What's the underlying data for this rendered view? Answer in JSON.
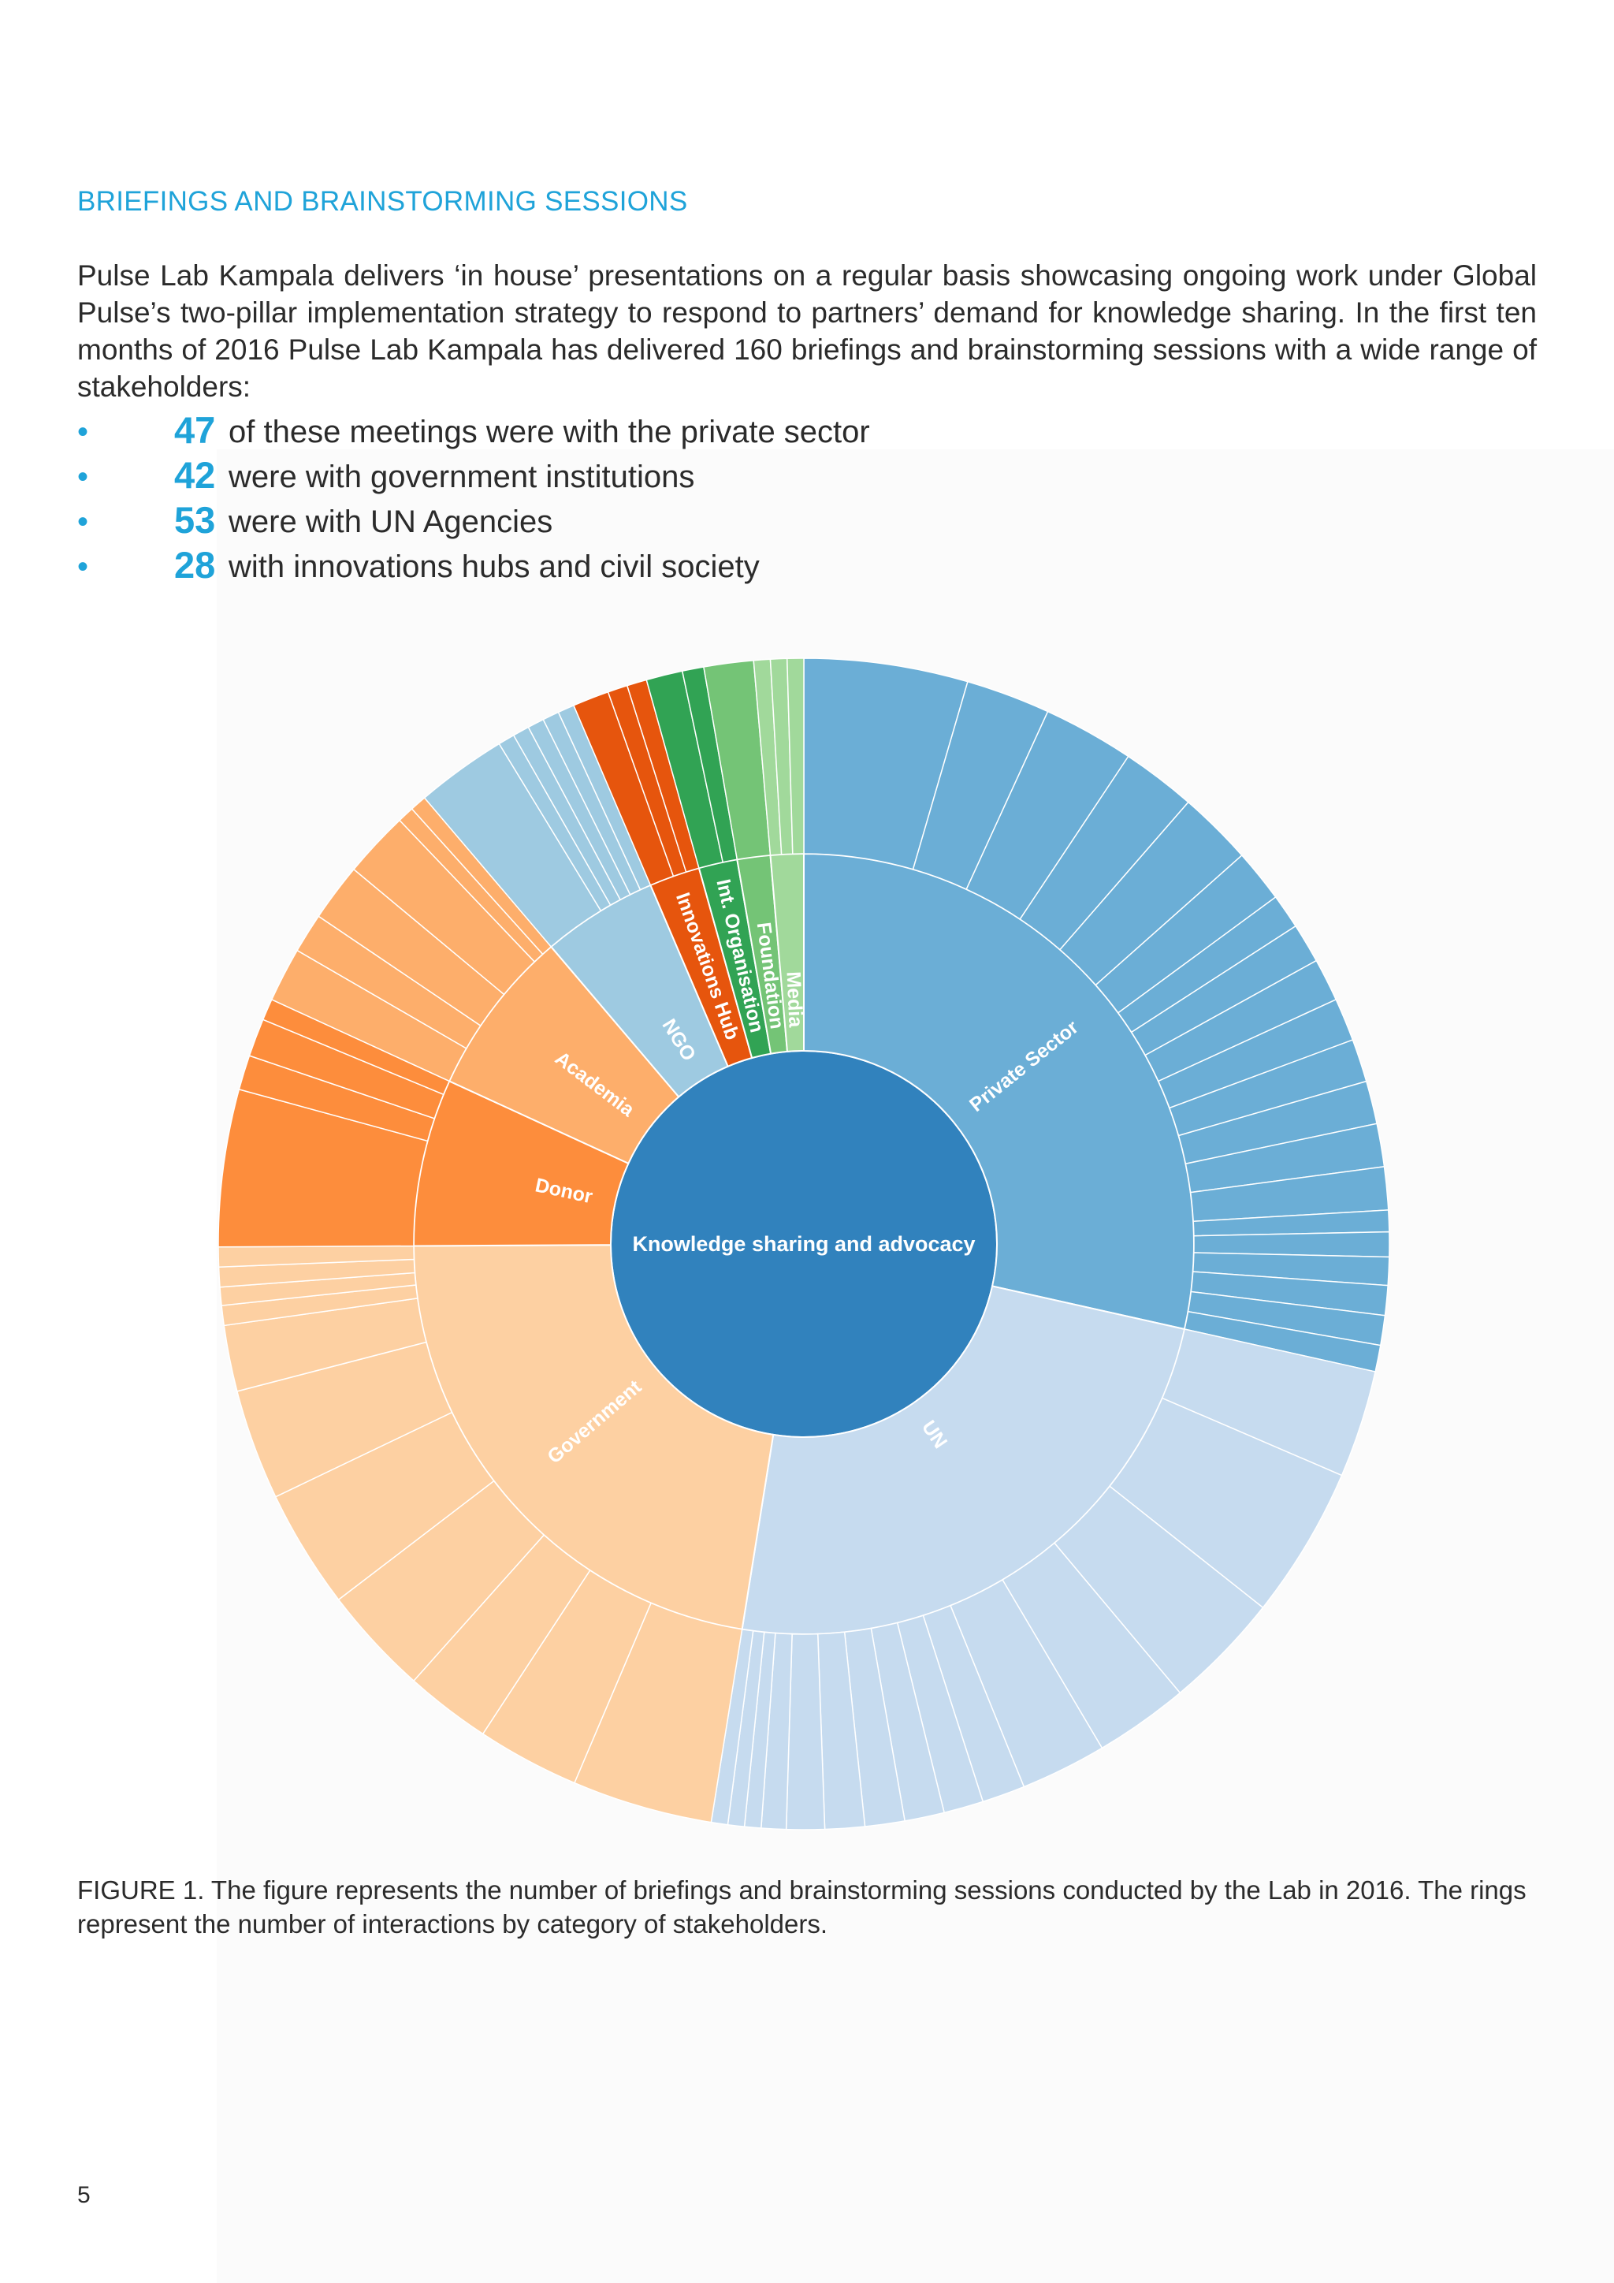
{
  "heading": "BRIEFINGS AND BRAINSTORMING SESSIONS",
  "intro": "Pulse Lab Kampala delivers ‘in house’ presentations on a regular basis showcasing ongoing work under Global Pulse’s two-pillar implementation strategy to respond to partners’ demand for knowledge sharing. In the first ten months of 2016 Pulse Lab Kampala has delivered 160 briefings and brainstorming sessions with a wide range of stakeholders:",
  "stats": [
    {
      "bullet": "•",
      "number": "47",
      "text": "of these meetings were with the private sector"
    },
    {
      "bullet": "•",
      "number": "42",
      "text": "were with government institutions"
    },
    {
      "bullet": "•",
      "number": "53",
      "text": "were with UN Agencies"
    },
    {
      "bullet": "•",
      "number": "28",
      "text": "with innovations hubs and civil society"
    }
  ],
  "chart_data": {
    "type": "sunburst",
    "center": {
      "label": "Knowledge sharing and advocacy",
      "color": "#3182bd"
    },
    "categories": [
      {
        "label": "Private Sector",
        "color": "#6baed6",
        "children": [
          9.9,
          5.1,
          5.5,
          4.5,
          4.5,
          3.2,
          2.1,
          2.4,
          2.6,
          2.6,
          2.6,
          2.6,
          2.6,
          2.6,
          1.3,
          1.5,
          1.7,
          1.8,
          1.8,
          1.6
        ]
      },
      {
        "label": "UN",
        "color": "#c6dbef",
        "children": [
          6.5,
          9.2,
          7.1,
          5.7,
          5.2,
          2.6,
          2.4,
          2.4,
          2.4,
          2.4,
          2.3,
          1.5,
          1.0,
          1.0,
          1.0
        ]
      },
      {
        "label": "Government",
        "color": "#fdd0a2",
        "children": [
          8.5,
          6.2,
          5.2,
          6.6,
          7.2,
          6.7,
          4.0,
          1.2,
          1.1,
          1.2,
          1.2
        ]
      },
      {
        "label": "Donor",
        "color": "#fd8d3c",
        "children": [
          9.5,
          2.1,
          2.3,
          1.3
        ]
      },
      {
        "label": "Academia",
        "color": "#fdae6b",
        "children": [
          3.3,
          2.4,
          3.5,
          4.0,
          1.0,
          1.0
        ]
      },
      {
        "label": "NGO",
        "color": "#9ecae1",
        "children": [
          5.5,
          1.0,
          1.0,
          1.0,
          1.0,
          1.0
        ]
      },
      {
        "label": "Innovations Hub",
        "color": "#e6550d",
        "children": [
          2.2,
          1.2,
          1.2
        ]
      },
      {
        "label": "Int. Organisation",
        "color": "#31a354",
        "children": [
          2.2,
          1.3
        ]
      },
      {
        "label": "Foundation",
        "color": "#74c476",
        "children": [
          3.0
        ]
      },
      {
        "label": "Media",
        "color": "#a1d99b",
        "children": [
          1.0,
          1.0,
          1.0
        ]
      }
    ]
  },
  "caption": "FIGURE 1. The figure represents the number of briefings and brainstorming sessions conducted by the Lab in 2016. The rings represent the number of interactions by category of stakeholders.",
  "page_number": "5"
}
